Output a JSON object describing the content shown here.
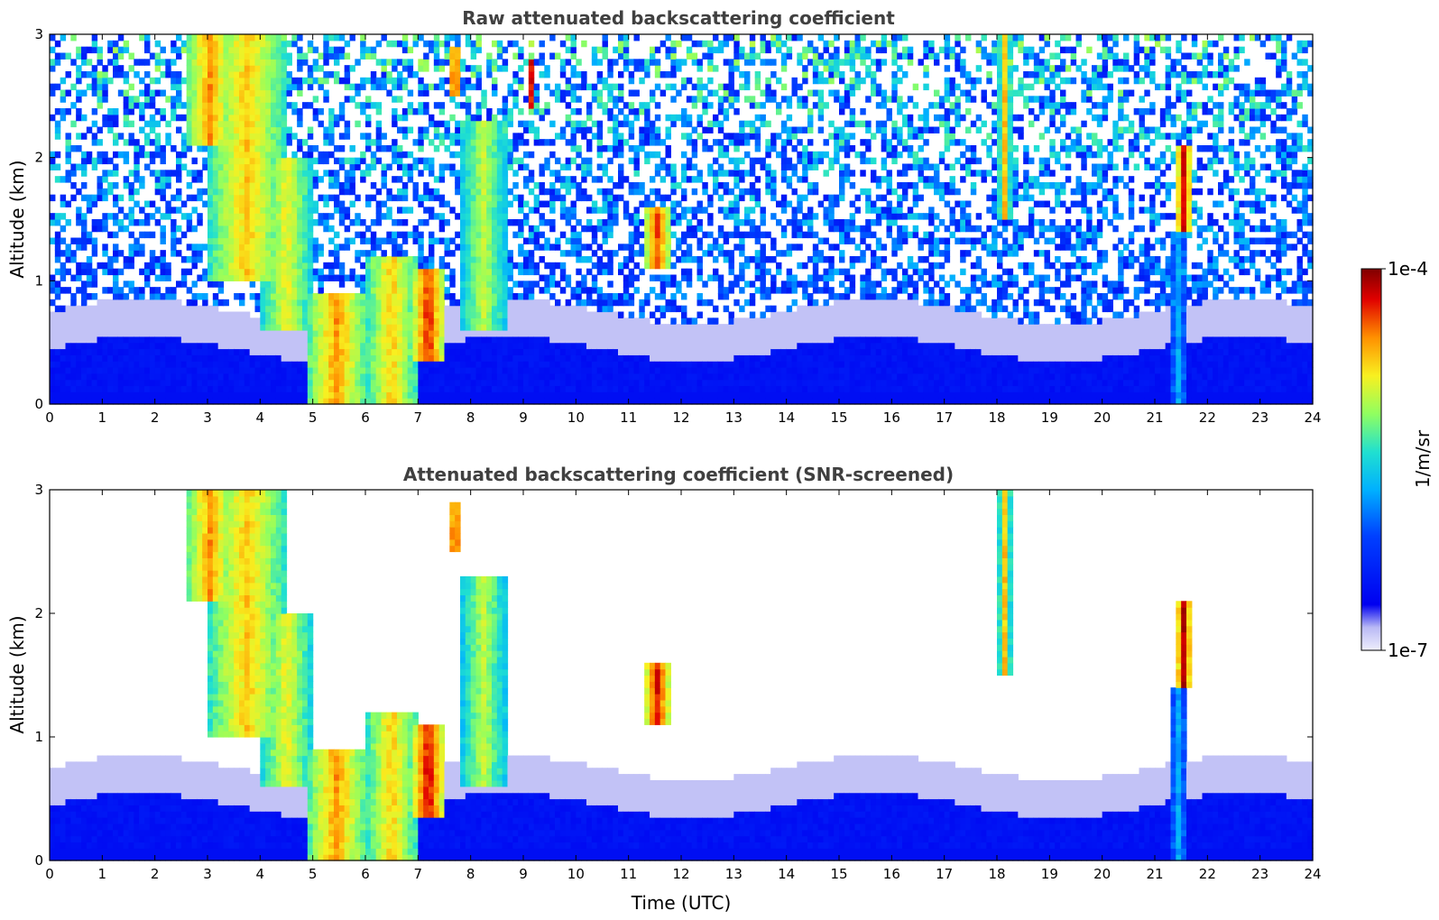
{
  "chart_data": [
    {
      "type": "heatmap",
      "title": "Raw attenuated backscattering coefficient",
      "xlabel": "",
      "ylabel": "Altitude (km)",
      "xlim": [
        0,
        24
      ],
      "ylim": [
        0,
        3
      ],
      "xticks": [
        "0",
        "1",
        "2",
        "3",
        "4",
        "5",
        "6",
        "7",
        "8",
        "9",
        "10",
        "11",
        "12",
        "13",
        "14",
        "15",
        "16",
        "17",
        "18",
        "19",
        "20",
        "21",
        "22",
        "23",
        "24"
      ],
      "yticks": [
        "0",
        "1",
        "2",
        "3"
      ],
      "features": [
        {
          "t0": 2.6,
          "t1": 3.5,
          "z0": 2.1,
          "z1": 3.0,
          "level": 0.85
        },
        {
          "t0": 3.0,
          "t1": 4.5,
          "z0": 1.0,
          "z1": 3.0,
          "level": 0.8
        },
        {
          "t0": 4.0,
          "t1": 5.0,
          "z0": 0.6,
          "z1": 2.0,
          "level": 0.75
        },
        {
          "t0": 4.9,
          "t1": 6.0,
          "z0": 0.0,
          "z1": 0.9,
          "level": 0.85
        },
        {
          "t0": 6.0,
          "t1": 7.0,
          "z0": 0.0,
          "z1": 1.2,
          "level": 0.8
        },
        {
          "t0": 6.9,
          "t1": 7.5,
          "z0": 0.35,
          "z1": 1.1,
          "level": 0.95
        },
        {
          "t0": 7.8,
          "t1": 8.7,
          "z0": 0.6,
          "z1": 2.3,
          "level": 0.7
        },
        {
          "t0": 7.6,
          "t1": 7.8,
          "z0": 2.5,
          "z1": 2.9,
          "level": 0.98
        },
        {
          "t0": 9.1,
          "t1": 9.2,
          "z0": 2.4,
          "z1": 2.8,
          "level": 0.95
        },
        {
          "t0": 11.3,
          "t1": 11.8,
          "z0": 1.1,
          "z1": 1.6,
          "level": 0.9
        },
        {
          "t0": 18.05,
          "t1": 18.25,
          "z0": 1.5,
          "z1": 3.0,
          "level": 0.8
        },
        {
          "t0": 21.4,
          "t1": 21.7,
          "z0": 1.4,
          "z1": 2.1,
          "level": 0.95
        },
        {
          "t0": 21.3,
          "t1": 21.6,
          "z0": 0.0,
          "z1": 1.4,
          "level": 0.45
        }
      ]
    },
    {
      "type": "heatmap",
      "title": "Attenuated backscattering coefficient (SNR-screened)",
      "xlabel": "Time (UTC)",
      "ylabel": "Altitude (km)",
      "xlim": [
        0,
        24
      ],
      "ylim": [
        0,
        3
      ],
      "xticks": [
        "0",
        "1",
        "2",
        "3",
        "4",
        "5",
        "6",
        "7",
        "8",
        "9",
        "10",
        "11",
        "12",
        "13",
        "14",
        "15",
        "16",
        "17",
        "18",
        "19",
        "20",
        "21",
        "22",
        "23",
        "24"
      ],
      "yticks": [
        "0",
        "1",
        "2",
        "3"
      ],
      "features": [
        {
          "t0": 2.6,
          "t1": 3.5,
          "z0": 2.1,
          "z1": 3.0,
          "level": 0.85
        },
        {
          "t0": 3.0,
          "t1": 4.5,
          "z0": 1.0,
          "z1": 3.0,
          "level": 0.8
        },
        {
          "t0": 4.0,
          "t1": 5.0,
          "z0": 0.6,
          "z1": 2.0,
          "level": 0.75
        },
        {
          "t0": 4.9,
          "t1": 6.0,
          "z0": 0.0,
          "z1": 0.9,
          "level": 0.85
        },
        {
          "t0": 6.0,
          "t1": 7.0,
          "z0": 0.0,
          "z1": 1.2,
          "level": 0.8
        },
        {
          "t0": 6.9,
          "t1": 7.5,
          "z0": 0.35,
          "z1": 1.1,
          "level": 0.98
        },
        {
          "t0": 7.8,
          "t1": 8.7,
          "z0": 0.6,
          "z1": 2.3,
          "level": 0.7
        },
        {
          "t0": 7.6,
          "t1": 7.8,
          "z0": 2.5,
          "z1": 2.9,
          "level": 0.99
        },
        {
          "t0": 11.3,
          "t1": 11.8,
          "z0": 1.1,
          "z1": 1.6,
          "level": 0.95
        },
        {
          "t0": 18.05,
          "t1": 18.25,
          "z0": 1.5,
          "z1": 3.0,
          "level": 0.8
        },
        {
          "t0": 21.4,
          "t1": 21.7,
          "z0": 1.4,
          "z1": 2.1,
          "level": 0.98
        },
        {
          "t0": 21.3,
          "t1": 21.6,
          "z0": 0.0,
          "z1": 1.4,
          "level": 0.45
        }
      ]
    }
  ],
  "colorbar": {
    "label": "1/m/sr",
    "max_label": "1e-4",
    "min_label": "1e-7",
    "colormap": "jet"
  }
}
